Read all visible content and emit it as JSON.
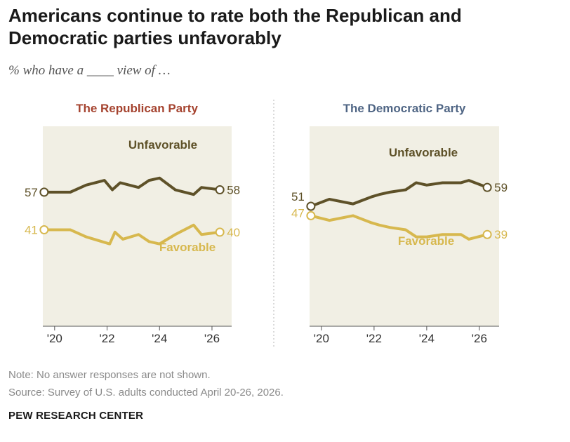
{
  "title": "Americans continue to rate both the Republican and Democratic parties unfavorably",
  "subtitle": "% who have a ____ view of …",
  "note": "Note: No answer responses are not shown.",
  "source": "Source: Survey of U.S. adults conducted April 20-26, 2026.",
  "brand": "PEW RESEARCH CENTER",
  "colors": {
    "unfavorable": "#5e5128",
    "favorable": "#d7b84e",
    "republican_title": "#a5432f",
    "democratic_title": "#4f6584",
    "panel_bg": "#f1efe4"
  },
  "chart_data": [
    {
      "type": "line",
      "title": "The Republican Party",
      "x_ticks": [
        "'20",
        "'22",
        "'24",
        "'26"
      ],
      "x_tick_values": [
        2020,
        2022,
        2024,
        2026
      ],
      "ylim": [
        0,
        85
      ],
      "xlim": [
        2019.55,
        2026.75
      ],
      "series": [
        {
          "name": "Unfavorable",
          "start_label": "57",
          "end_label": "58",
          "x": [
            2019.6,
            2020.6,
            2021.2,
            2021.9,
            2022.2,
            2022.5,
            2023.2,
            2023.6,
            2024.0,
            2024.6,
            2025.3,
            2025.6,
            2026.3
          ],
          "y": [
            57,
            57,
            60,
            62,
            58,
            61,
            59,
            62,
            63,
            58,
            56,
            59,
            58
          ]
        },
        {
          "name": "Favorable",
          "start_label": "41",
          "end_label": "40",
          "x": [
            2019.6,
            2020.6,
            2021.2,
            2022.1,
            2022.3,
            2022.6,
            2023.2,
            2023.6,
            2024.0,
            2024.6,
            2025.3,
            2025.6,
            2026.3
          ],
          "y": [
            41,
            41,
            38,
            35,
            40,
            37,
            39,
            36,
            35,
            39,
            43,
            39,
            40
          ]
        }
      ]
    },
    {
      "type": "line",
      "title": "The Democratic Party",
      "x_ticks": [
        "'20",
        "'22",
        "'24",
        "'26"
      ],
      "x_tick_values": [
        2020,
        2022,
        2024,
        2026
      ],
      "ylim": [
        0,
        85
      ],
      "xlim": [
        2019.55,
        2026.75
      ],
      "series": [
        {
          "name": "Unfavorable",
          "start_label": "51",
          "end_label": "59",
          "x": [
            2019.6,
            2020.3,
            2021.2,
            2021.9,
            2022.2,
            2022.6,
            2023.2,
            2023.6,
            2024.0,
            2024.6,
            2025.3,
            2025.6,
            2026.3
          ],
          "y": [
            51,
            54,
            52,
            55,
            56,
            57,
            58,
            61,
            60,
            61,
            61,
            62,
            59
          ]
        },
        {
          "name": "Favorable",
          "start_label": "47",
          "end_label": "39",
          "x": [
            2019.6,
            2020.3,
            2021.2,
            2021.9,
            2022.2,
            2022.6,
            2023.2,
            2023.6,
            2024.0,
            2024.6,
            2025.3,
            2025.6,
            2026.3
          ],
          "y": [
            47,
            45,
            47,
            44,
            43,
            42,
            41,
            38,
            38,
            39,
            39,
            37,
            39
          ]
        }
      ]
    }
  ]
}
